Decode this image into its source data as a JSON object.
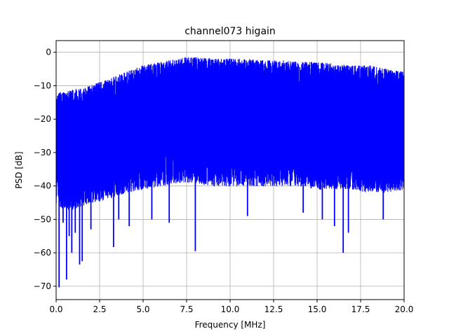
{
  "chart_data": {
    "type": "line",
    "title": "channel073 higain",
    "xlabel": "Frequency [MHz]",
    "ylabel": "PSD [dB]",
    "xlim": [
      0,
      20
    ],
    "ylim": [
      -74,
      3.5
    ],
    "grid": true,
    "x_ticks": [
      0,
      2.5,
      5,
      7.5,
      10,
      12.5,
      15,
      17.5,
      20
    ],
    "x_tick_labels": [
      "0.0",
      "2.5",
      "5.0",
      "7.5",
      "10.0",
      "12.5",
      "15.0",
      "17.5",
      "20.0"
    ],
    "y_ticks": [
      0,
      -10,
      -20,
      -30,
      -40,
      -50,
      -60,
      -70
    ],
    "y_tick_labels": [
      "0",
      "−10",
      "−20",
      "−30",
      "−40",
      "−50",
      "−60",
      "−70"
    ],
    "series": [
      {
        "color": "#0000ff",
        "upper_envelope": {
          "x": [
            0,
            0.2,
            0.5,
            1.0,
            1.5,
            2.0,
            2.5,
            3.0,
            3.5,
            4.0,
            5.0,
            6.0,
            7.0,
            7.5,
            8.0,
            9.0,
            10.0,
            11.0,
            12.0,
            13.0,
            14.0,
            15.0,
            16.0,
            17.0,
            18.0,
            19.0,
            20.0
          ],
          "y": [
            -13,
            -12,
            -12,
            -11,
            -11,
            -10,
            -9,
            -8,
            -7,
            -6,
            -4,
            -3,
            -2,
            -1.5,
            -1.5,
            -2,
            -2,
            -2,
            -2.5,
            -2.5,
            -3,
            -3,
            -3.5,
            -4,
            -4,
            -5,
            -6
          ]
        },
        "lower_envelope": {
          "x": [
            0,
            0.5,
            1.0,
            1.5,
            2.0,
            3.0,
            4.0,
            5.0,
            6.0,
            7.0,
            8.0,
            9.0,
            10.0,
            11.0,
            12.0,
            13.0,
            14.0,
            15.0,
            16.0,
            17.0,
            18.0,
            19.0,
            20.0
          ],
          "y": [
            -46,
            -47,
            -47,
            -46,
            -45,
            -44,
            -42,
            -41,
            -40,
            -39,
            -39,
            -40,
            -40,
            -40,
            -40,
            -40,
            -40,
            -41,
            -41,
            -41,
            -42,
            -42,
            -41
          ]
        },
        "dips": [
          {
            "x": 0.17,
            "y": -70.3
          },
          {
            "x": 0.4,
            "y": -51
          },
          {
            "x": 0.6,
            "y": -68
          },
          {
            "x": 0.75,
            "y": -55
          },
          {
            "x": 0.9,
            "y": -60
          },
          {
            "x": 1.1,
            "y": -54
          },
          {
            "x": 1.35,
            "y": -63.5
          },
          {
            "x": 1.5,
            "y": -62.5
          },
          {
            "x": 2.0,
            "y": -53
          },
          {
            "x": 3.3,
            "y": -58.3
          },
          {
            "x": 3.6,
            "y": -50
          },
          {
            "x": 4.2,
            "y": -52
          },
          {
            "x": 5.5,
            "y": -50
          },
          {
            "x": 6.5,
            "y": -51
          },
          {
            "x": 8.0,
            "y": -59.5
          },
          {
            "x": 11.0,
            "y": -49
          },
          {
            "x": 14.2,
            "y": -48
          },
          {
            "x": 15.3,
            "y": -50
          },
          {
            "x": 16.0,
            "y": -52
          },
          {
            "x": 16.5,
            "y": -60
          },
          {
            "x": 16.8,
            "y": -54
          },
          {
            "x": 18.8,
            "y": -50
          }
        ]
      }
    ]
  }
}
